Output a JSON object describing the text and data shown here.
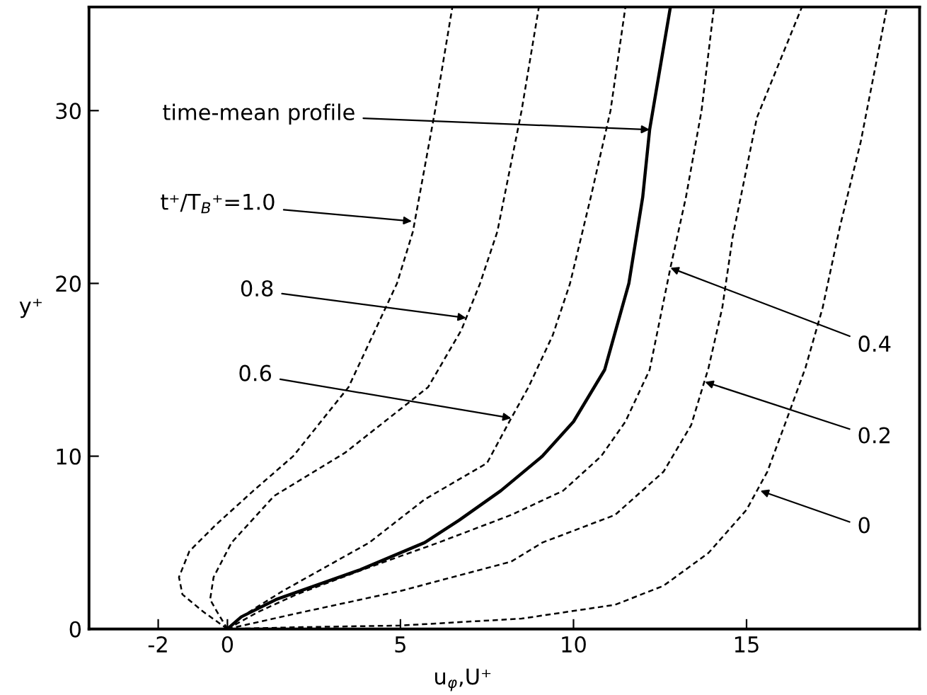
{
  "chart_data": {
    "type": "line",
    "xlabel": "u$_{φ}$,U⁺",
    "ylabel": "y⁺",
    "xlim": [
      -4,
      20
    ],
    "ylim": [
      0,
      36
    ],
    "xticks": [
      -2,
      0,
      5,
      10,
      15
    ],
    "yticks": [
      0,
      10,
      20,
      30
    ],
    "grid": false,
    "legend": false,
    "marker": "none",
    "series": [
      {
        "color": "#000000",
        "line_style": "dashed",
        "x": [
          0,
          -0.7,
          -1.3,
          -1.4,
          -1.1,
          -0.35,
          0.75,
          1.9,
          3.5,
          4.2,
          4.9,
          5.36,
          6.0,
          6.5
        ],
        "values": [
          0,
          1,
          2,
          3,
          4.5,
          6,
          8,
          10,
          14,
          17,
          20,
          23,
          30,
          36
        ]
      },
      {
        "color": "#000000",
        "line_style": "dashed",
        "x": [
          0,
          -0.3,
          -0.5,
          -0.4,
          0.12,
          1.35,
          3.4,
          5.3,
          5.8,
          6.76,
          6.9,
          7.3,
          7.8,
          8.5,
          9.0
        ],
        "values": [
          0,
          1,
          1.7,
          3,
          5,
          7.7,
          10.2,
          13.2,
          14,
          17.3,
          18,
          20,
          23,
          30,
          36
        ]
      },
      {
        "color": "#000000",
        "line_style": "dashed",
        "x": [
          0,
          0.4,
          1.6,
          4.1,
          5.7,
          7.5,
          8.2,
          8.7,
          9.4,
          9.9,
          10.5,
          11.07,
          11.5
        ],
        "values": [
          0,
          0.7,
          2.2,
          5,
          7.5,
          9.6,
          12.2,
          14,
          17,
          20,
          25,
          30,
          36
        ]
      },
      {
        "color": "#000000",
        "line_style": "solid",
        "x": [
          0,
          0.4,
          1.4,
          3.8,
          5.7,
          6.7,
          7.9,
          9.1,
          10.0,
          10.9,
          11.6,
          12.0,
          12.2,
          12.8
        ],
        "values": [
          0,
          0.7,
          1.7,
          3.4,
          5,
          6.3,
          8,
          10,
          12,
          15,
          20,
          25,
          28.9,
          36
        ]
      },
      {
        "color": "#000000",
        "line_style": "dashed",
        "x": [
          0,
          0.9,
          2.0,
          4.0,
          6.1,
          8.2,
          9.7,
          10.8,
          11.5,
          12.2,
          12.8,
          13.25,
          13.7,
          14.06
        ],
        "values": [
          0,
          1,
          2,
          3.5,
          5,
          6.6,
          8,
          10,
          12,
          15,
          20.9,
          25,
          30,
          36
        ]
      },
      {
        "color": "#000000",
        "line_style": "dashed",
        "x": [
          0,
          2.0,
          5.0,
          8.2,
          9.1,
          11.2,
          12.6,
          13.4,
          13.9,
          14.3,
          14.6,
          15.3,
          16.6
        ],
        "values": [
          0,
          0.9,
          2.2,
          3.9,
          5.0,
          6.6,
          9.1,
          11.8,
          15.1,
          18.6,
          22.7,
          29.6,
          36
        ]
      },
      {
        "color": "#000000",
        "line_style": "dashed",
        "x": [
          0,
          2.0,
          5.0,
          8.5,
          11.2,
          12.6,
          13.9,
          15.0,
          15.6,
          16.1,
          16.7,
          17.2,
          17.7,
          18.3,
          19.06
        ],
        "values": [
          0,
          0.1,
          0.2,
          0.6,
          1.4,
          2.5,
          4.4,
          6.9,
          9.1,
          11.8,
          15.1,
          18.6,
          23.3,
          28.2,
          36
        ]
      }
    ],
    "annotations": [
      {
        "text": "time-mean profile",
        "x": 12.2,
        "y": 28.9
      },
      {
        "text": "t⁺/T$_{B}$⁺=1.0",
        "x": 5.33,
        "y": 23.6
      },
      {
        "text": "0.8",
        "x": 6.9,
        "y": 18
      },
      {
        "text": "0.6",
        "x": 8.2,
        "y": 12.2
      },
      {
        "text": "0.4",
        "x": 12.8,
        "y": 20.9
      },
      {
        "text": "0.2",
        "x": 13.8,
        "y": 14.3
      },
      {
        "text": "0",
        "x": 15.4,
        "y": 8.0
      }
    ]
  }
}
